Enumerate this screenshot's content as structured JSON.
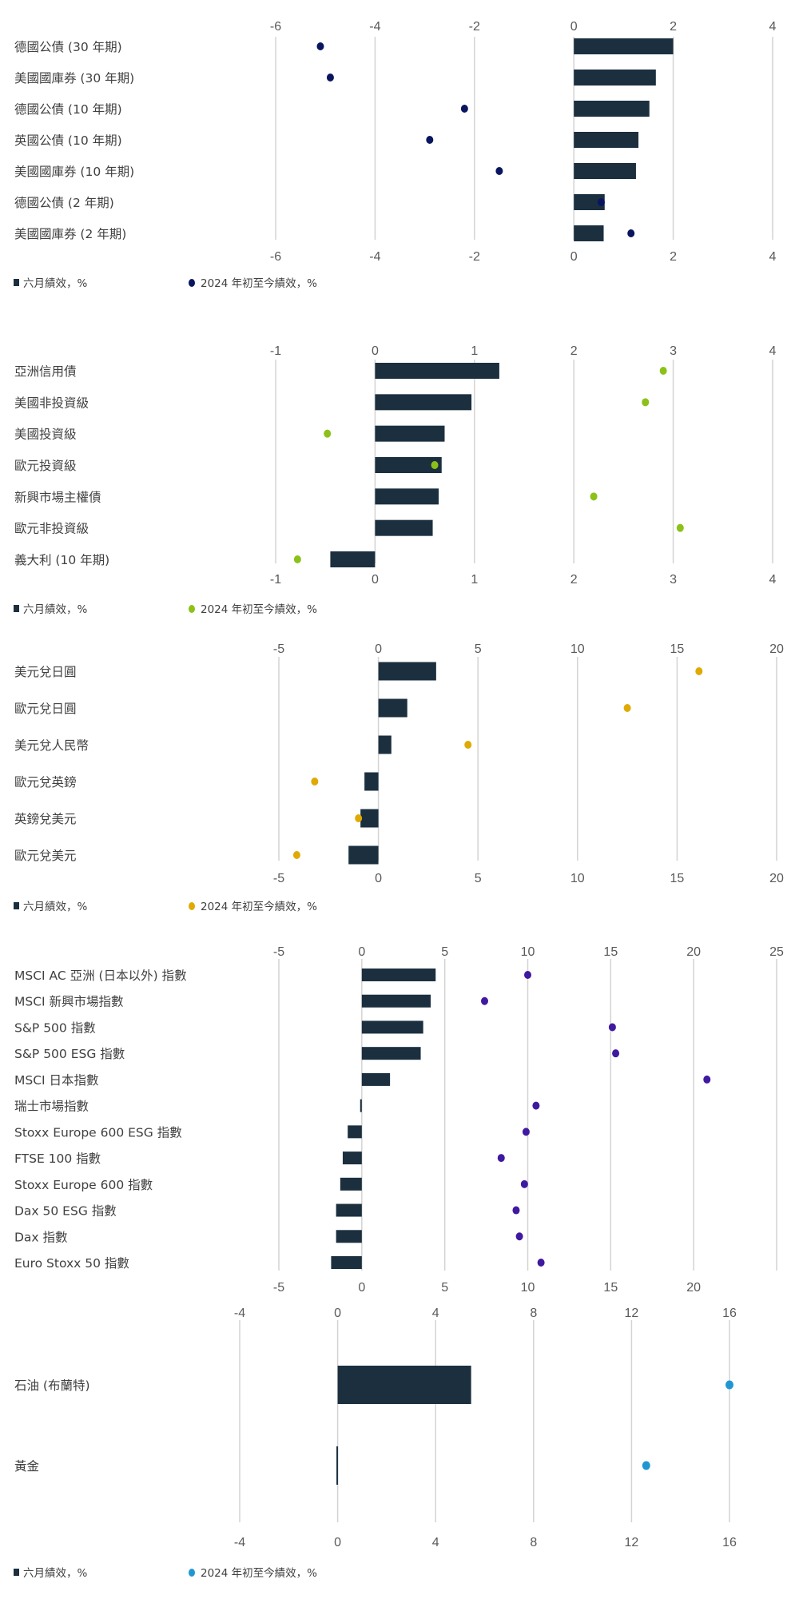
{
  "legend": {
    "bar_label": "六月績效，%",
    "dot_label": "2024 年初至今績效，%"
  },
  "colors": {
    "bar": "#1b2f3f",
    "grid": "#d3d3d3",
    "text": "#404040"
  },
  "chart_data": [
    {
      "type": "bar",
      "title": "",
      "categories": [
        "德國公債 (30 年期)",
        "美國國庫券 (30 年期)",
        "德國公債 (10 年期)",
        "英國公債 (10 年期)",
        "美國國庫券 (10 年期)",
        "德國公債 (2 年期)",
        "美國國庫券 (2 年期)"
      ],
      "series": [
        {
          "name": "六月績效，%",
          "kind": "bar",
          "values": [
            2.0,
            1.65,
            1.52,
            1.3,
            1.25,
            0.62,
            0.6
          ]
        },
        {
          "name": "2024 年初至今績效，%",
          "kind": "dot",
          "color": "#0a1560",
          "values": [
            -5.1,
            -4.9,
            -2.2,
            -2.9,
            -1.5,
            0.55,
            1.15
          ]
        }
      ],
      "xlim": [
        -6,
        4
      ],
      "xticks": [
        -6,
        -4,
        -2,
        0,
        2,
        4
      ],
      "grid": true,
      "legend": "bottom-left",
      "show_legend": true
    },
    {
      "type": "bar",
      "title": "",
      "categories": [
        "亞洲信用債",
        "美國非投資級",
        "美國投資級",
        "歐元投資級",
        "新興市場主權債",
        "歐元非投資級",
        "義大利 (10 年期)"
      ],
      "series": [
        {
          "name": "六月績效，%",
          "kind": "bar",
          "values": [
            1.25,
            0.97,
            0.7,
            0.67,
            0.64,
            0.58,
            -0.45
          ]
        },
        {
          "name": "2024 年初至今績效，%",
          "kind": "dot",
          "color": "#8cc11a",
          "values": [
            2.9,
            2.72,
            -0.48,
            0.6,
            2.2,
            3.07,
            -0.78
          ]
        }
      ],
      "xlim": [
        -1,
        4
      ],
      "xticks": [
        -1,
        0,
        1,
        2,
        3,
        4
      ],
      "grid": true,
      "legend": "bottom-left",
      "show_legend": true
    },
    {
      "type": "bar",
      "title": "",
      "categories": [
        "美元兌日圓",
        "歐元兌日圓",
        "美元兌人民幣",
        "歐元兌英鎊",
        "英鎊兌美元",
        "歐元兌美元"
      ],
      "series": [
        {
          "name": "六月績效，%",
          "kind": "bar",
          "values": [
            2.9,
            1.45,
            0.65,
            -0.7,
            -0.9,
            -1.5
          ]
        },
        {
          "name": "2024 年初至今績效，%",
          "kind": "dot",
          "color": "#e0aa05",
          "values": [
            16.1,
            12.5,
            4.5,
            -3.2,
            -1.0,
            -4.1
          ]
        }
      ],
      "xlim": [
        -5,
        20
      ],
      "xticks": [
        -5,
        0,
        5,
        10,
        15,
        20
      ],
      "grid": true,
      "legend": "bottom-left",
      "show_legend": true
    },
    {
      "type": "bar",
      "title": "",
      "categories": [
        "MSCI AC 亞洲 (日本以外) 指數",
        "MSCI 新興市場指數",
        "S&P 500 指數",
        "S&P 500 ESG 指數",
        "MSCI 日本指數",
        "瑞士市場指數",
        "Stoxx Europe 600 ESG 指數",
        "FTSE 100 指數",
        "Stoxx Europe 600 指數",
        "Dax 50 ESG 指數",
        "Dax 指數",
        "Euro Stoxx 50 指數"
      ],
      "series": [
        {
          "name": "六月績效，%",
          "kind": "bar",
          "values": [
            4.45,
            4.15,
            3.7,
            3.55,
            1.7,
            -0.1,
            -0.85,
            -1.15,
            -1.3,
            -1.55,
            -1.55,
            -1.85
          ]
        },
        {
          "name": "2024 年初至今績效，%",
          "kind": "dot",
          "color": "#3f1aa0",
          "values": [
            10.0,
            7.4,
            15.1,
            15.3,
            20.8,
            10.5,
            9.9,
            8.4,
            9.8,
            9.3,
            9.5,
            10.8
          ]
        }
      ],
      "xlim": [
        -5,
        25
      ],
      "xticks": [
        -5,
        0,
        5,
        10,
        15,
        20,
        25
      ],
      "bottom_xticks": [
        -5,
        0,
        5,
        10,
        15,
        20
      ],
      "grid": true,
      "show_legend": false
    },
    {
      "type": "bar",
      "title": "",
      "categories": [
        "石油 (布蘭特)",
        "黃金"
      ],
      "series": [
        {
          "name": "六月績效，%",
          "kind": "bar",
          "values": [
            5.45,
            -0.05
          ]
        },
        {
          "name": "2024 年初至今績效，%",
          "kind": "dot",
          "color": "#1f97d2",
          "values": [
            16.0,
            12.6
          ]
        }
      ],
      "xlim": [
        -4,
        16
      ],
      "xticks": [
        -4,
        0,
        4,
        8,
        12,
        16
      ],
      "grid": true,
      "legend": "bottom-left",
      "show_legend": true
    }
  ]
}
